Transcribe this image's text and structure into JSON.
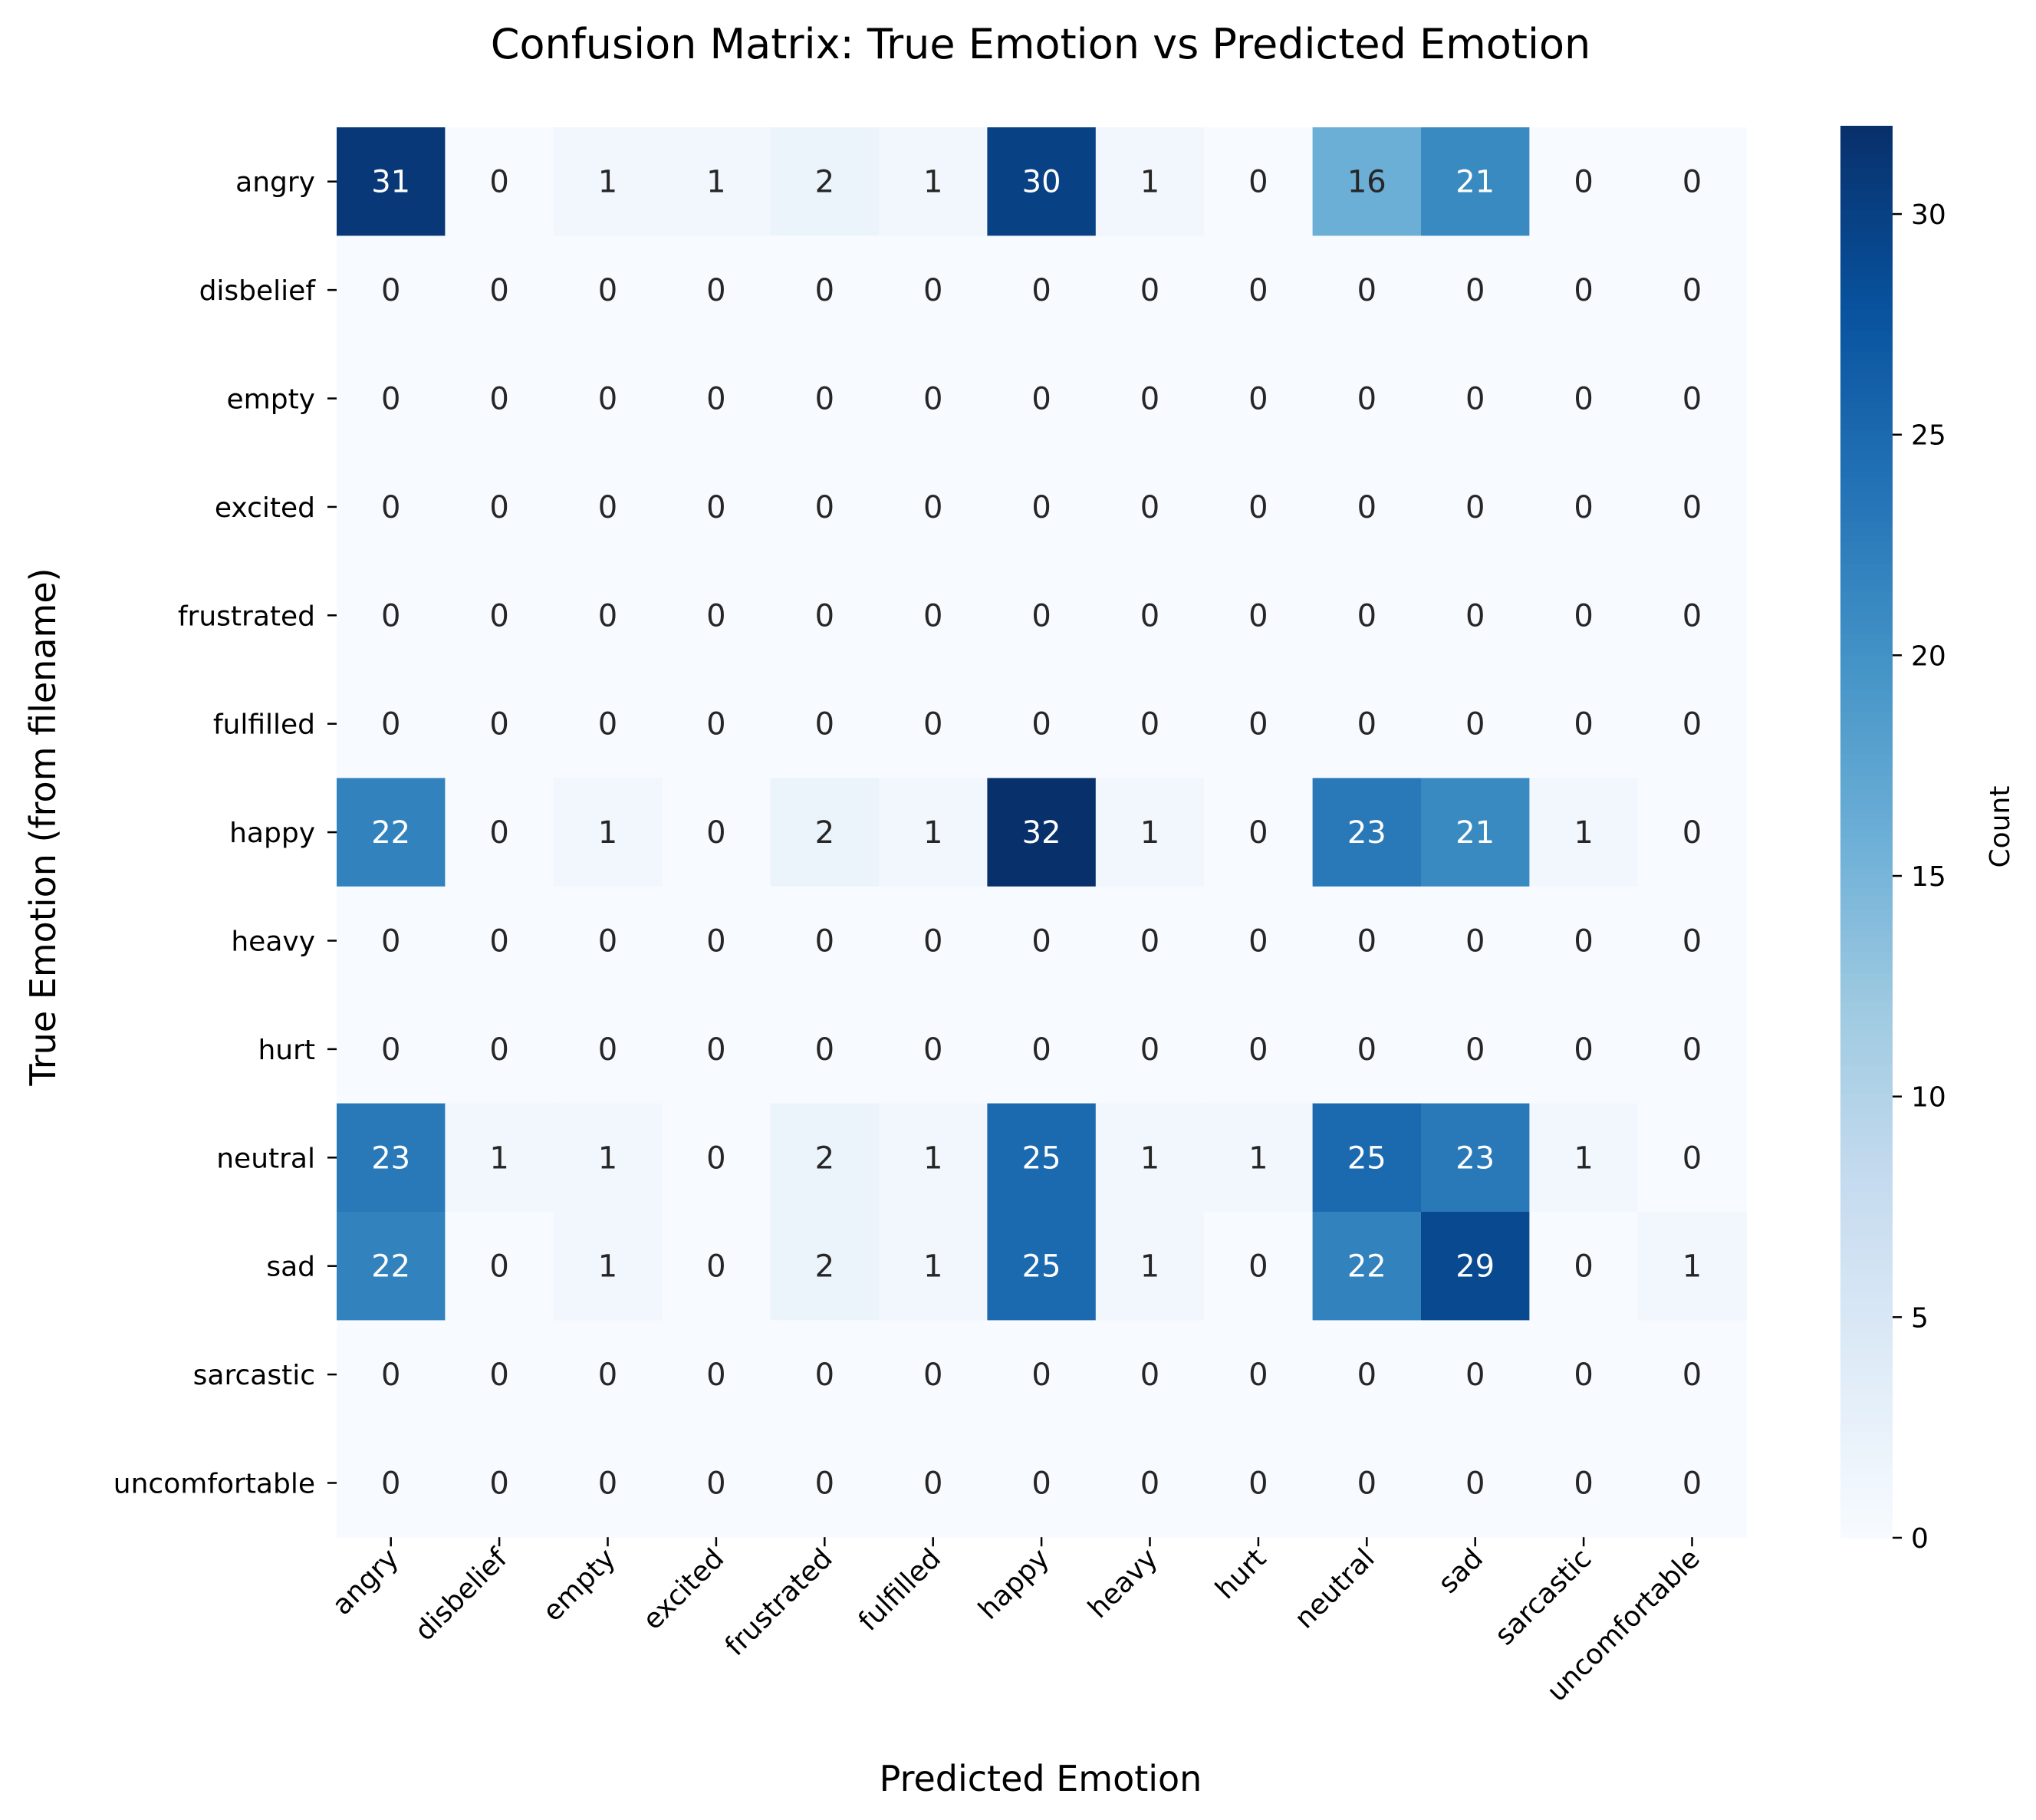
{
  "chart_data": {
    "type": "heatmap",
    "title": "Confusion Matrix: True Emotion vs Predicted Emotion",
    "xlabel": "Predicted Emotion",
    "ylabel": "True Emotion (from filename)",
    "x_categories": [
      "angry",
      "disbelief",
      "empty",
      "excited",
      "frustrated",
      "fulfilled",
      "happy",
      "heavy",
      "hurt",
      "neutral",
      "sad",
      "sarcastic",
      "uncomfortable"
    ],
    "y_categories": [
      "angry",
      "disbelief",
      "empty",
      "excited",
      "frustrated",
      "fulfilled",
      "happy",
      "heavy",
      "hurt",
      "neutral",
      "sad",
      "sarcastic",
      "uncomfortable"
    ],
    "values": [
      [
        31,
        0,
        1,
        1,
        2,
        1,
        30,
        1,
        0,
        16,
        21,
        0,
        0
      ],
      [
        0,
        0,
        0,
        0,
        0,
        0,
        0,
        0,
        0,
        0,
        0,
        0,
        0
      ],
      [
        0,
        0,
        0,
        0,
        0,
        0,
        0,
        0,
        0,
        0,
        0,
        0,
        0
      ],
      [
        0,
        0,
        0,
        0,
        0,
        0,
        0,
        0,
        0,
        0,
        0,
        0,
        0
      ],
      [
        0,
        0,
        0,
        0,
        0,
        0,
        0,
        0,
        0,
        0,
        0,
        0,
        0
      ],
      [
        0,
        0,
        0,
        0,
        0,
        0,
        0,
        0,
        0,
        0,
        0,
        0,
        0
      ],
      [
        22,
        0,
        1,
        0,
        2,
        1,
        32,
        1,
        0,
        23,
        21,
        1,
        0
      ],
      [
        0,
        0,
        0,
        0,
        0,
        0,
        0,
        0,
        0,
        0,
        0,
        0,
        0
      ],
      [
        0,
        0,
        0,
        0,
        0,
        0,
        0,
        0,
        0,
        0,
        0,
        0,
        0
      ],
      [
        23,
        1,
        1,
        0,
        2,
        1,
        25,
        1,
        1,
        25,
        23,
        1,
        0
      ],
      [
        22,
        0,
        1,
        0,
        2,
        1,
        25,
        1,
        0,
        22,
        29,
        0,
        1
      ],
      [
        0,
        0,
        0,
        0,
        0,
        0,
        0,
        0,
        0,
        0,
        0,
        0,
        0
      ],
      [
        0,
        0,
        0,
        0,
        0,
        0,
        0,
        0,
        0,
        0,
        0,
        0,
        0
      ]
    ],
    "colormap": "Blues",
    "vmin": 0,
    "vmax": 32,
    "colorbar": {
      "label": "Count",
      "ticks": [
        0,
        5,
        10,
        15,
        20,
        25,
        30
      ]
    },
    "annotate": true,
    "grid": false
  }
}
